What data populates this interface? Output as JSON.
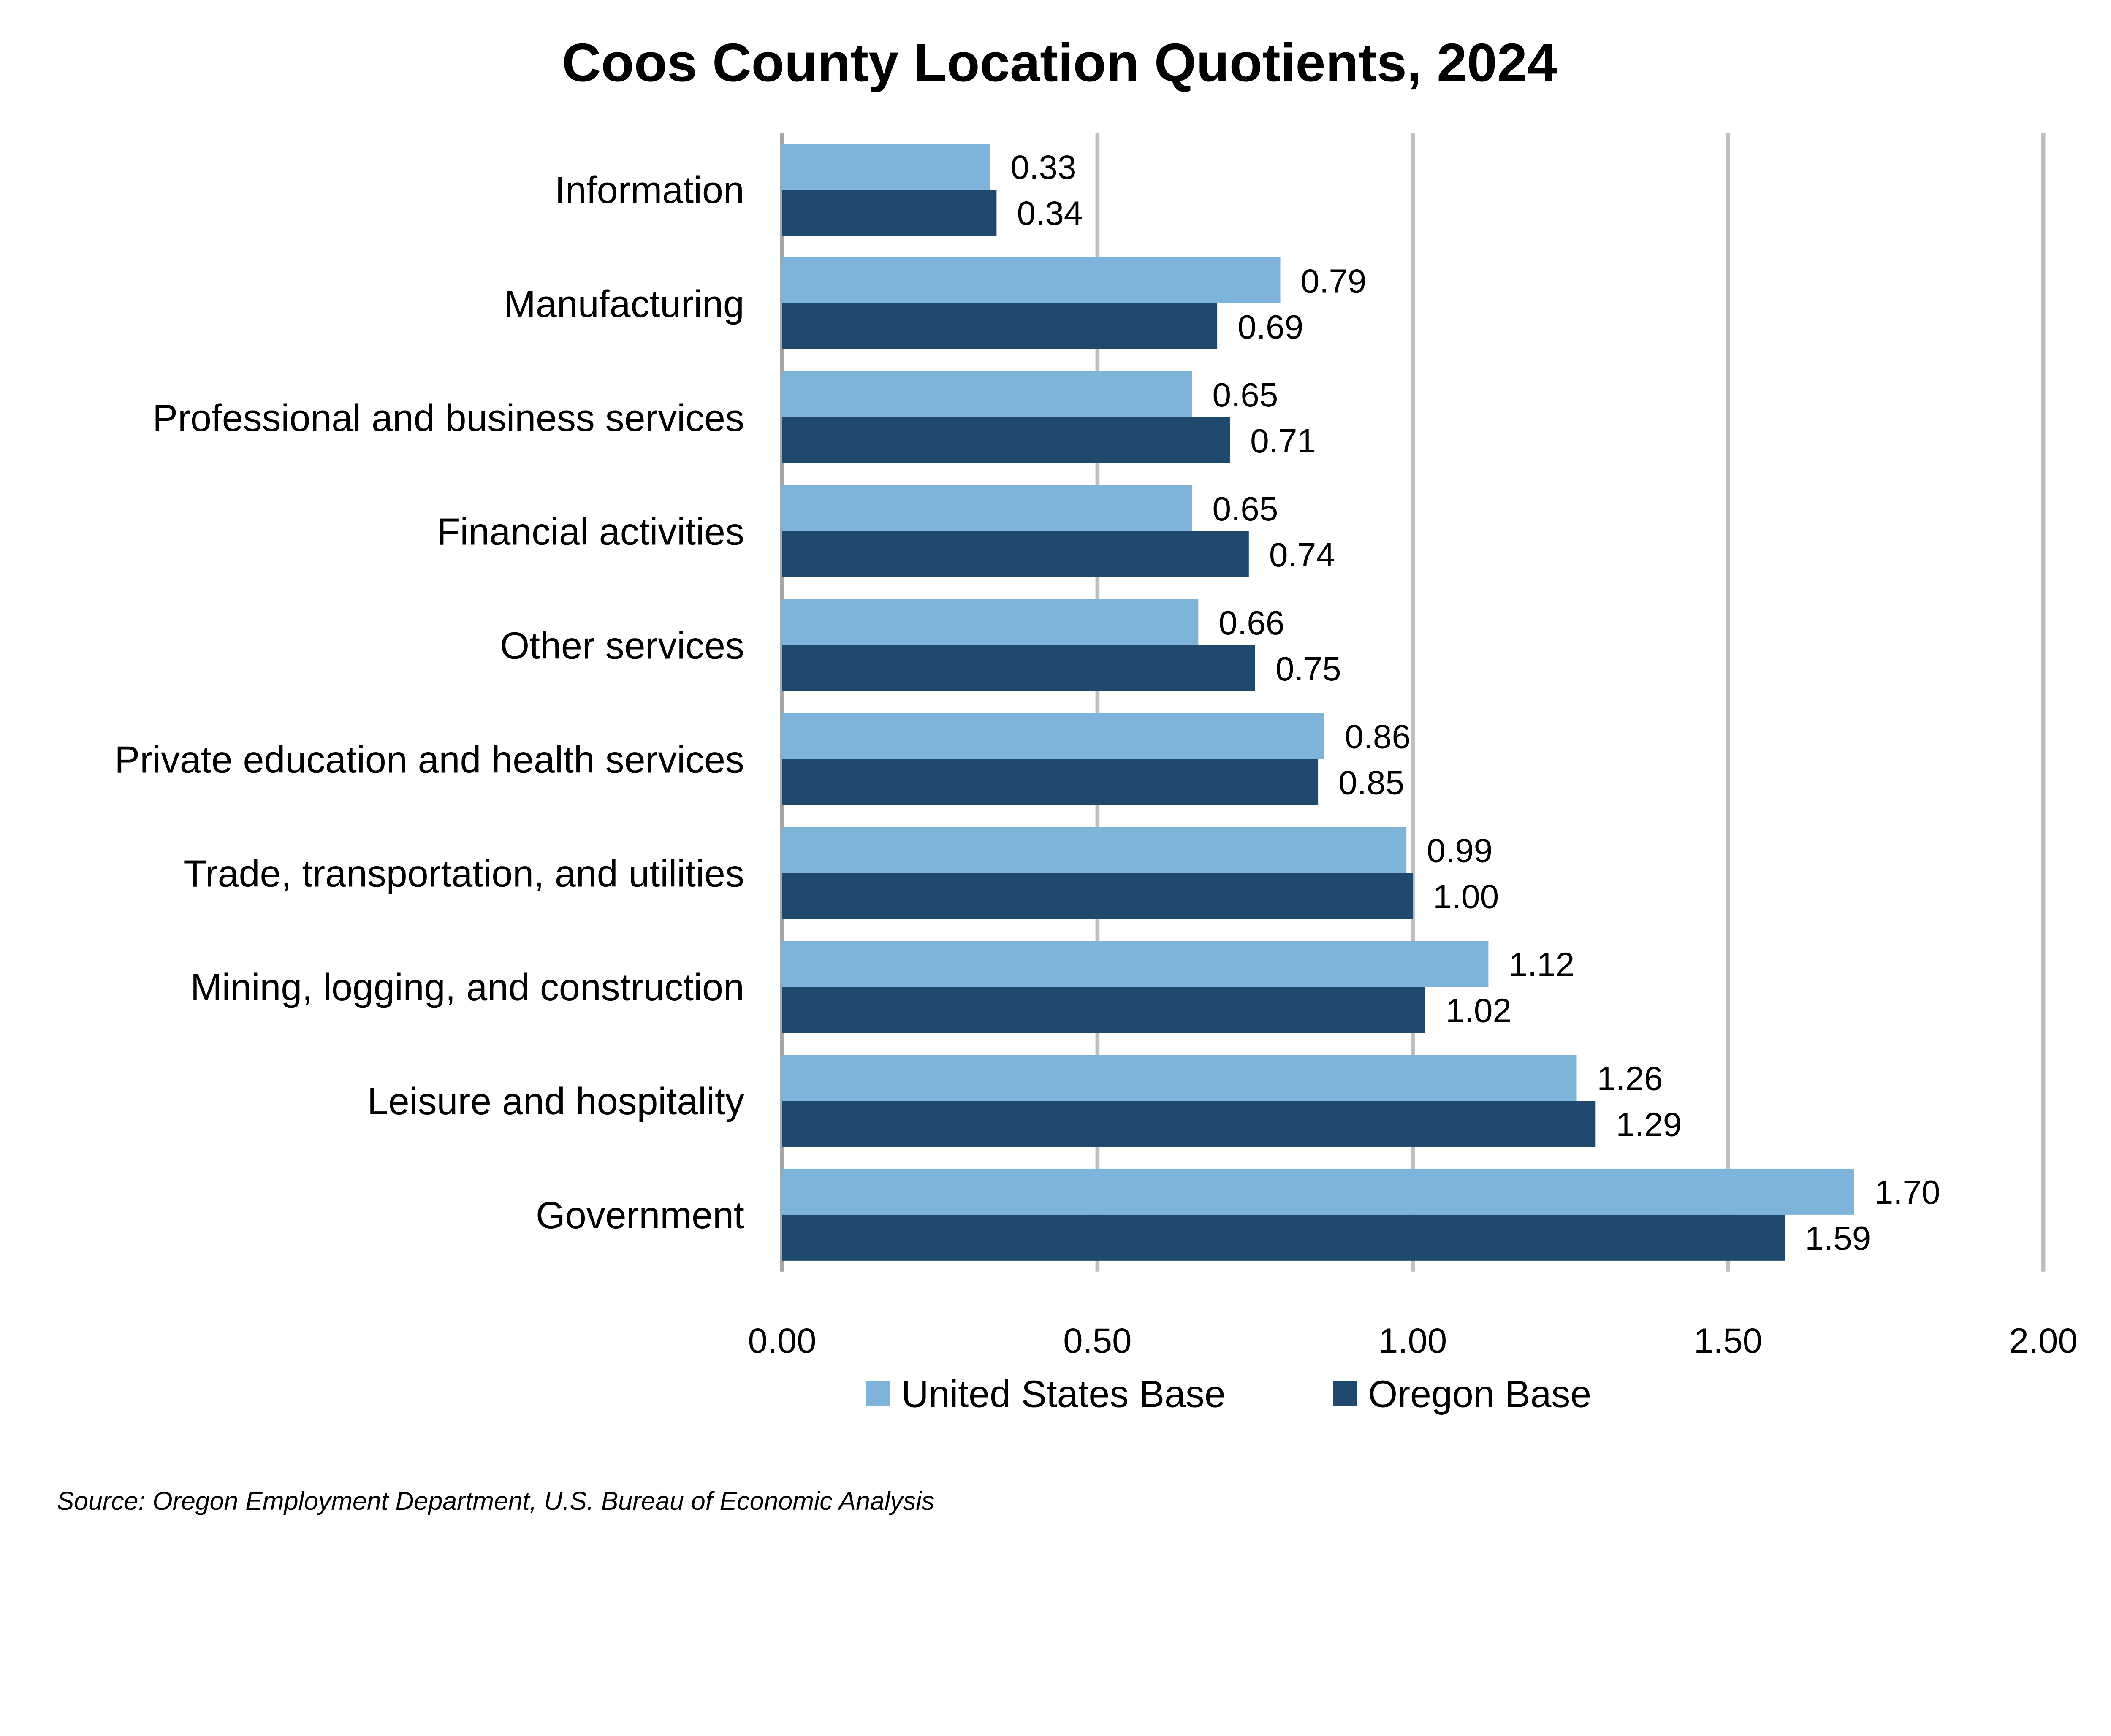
{
  "chart_data": {
    "type": "bar",
    "orientation": "horizontal",
    "title": "Coos County Location Quotients, 2024",
    "categories": [
      "Information",
      "Manufacturing",
      "Professional and business services",
      "Financial activities",
      "Other services",
      "Private education and health services",
      "Trade, transportation, and utilities",
      "Mining, logging, and construction",
      "Leisure and hospitality",
      "Government"
    ],
    "series": [
      {
        "name": "United States Base",
        "color": "#7EB3DA",
        "values": [
          0.33,
          0.79,
          0.65,
          0.65,
          0.66,
          0.86,
          0.99,
          1.12,
          1.26,
          1.7
        ]
      },
      {
        "name": "Oregon Base",
        "color": "#1F4A6E",
        "values": [
          0.34,
          0.69,
          0.71,
          0.74,
          0.75,
          0.85,
          1.0,
          1.02,
          1.29,
          1.59
        ]
      }
    ],
    "xlim": [
      0,
      2
    ],
    "xticks": [
      "0.00",
      "0.50",
      "1.00",
      "1.50",
      "2.00"
    ],
    "xlabel": "",
    "ylabel": "",
    "grid": "vertical",
    "legend": "bottom",
    "source": "Source: Oregon Employment Department, U.S. Bureau of Economic Analysis"
  }
}
